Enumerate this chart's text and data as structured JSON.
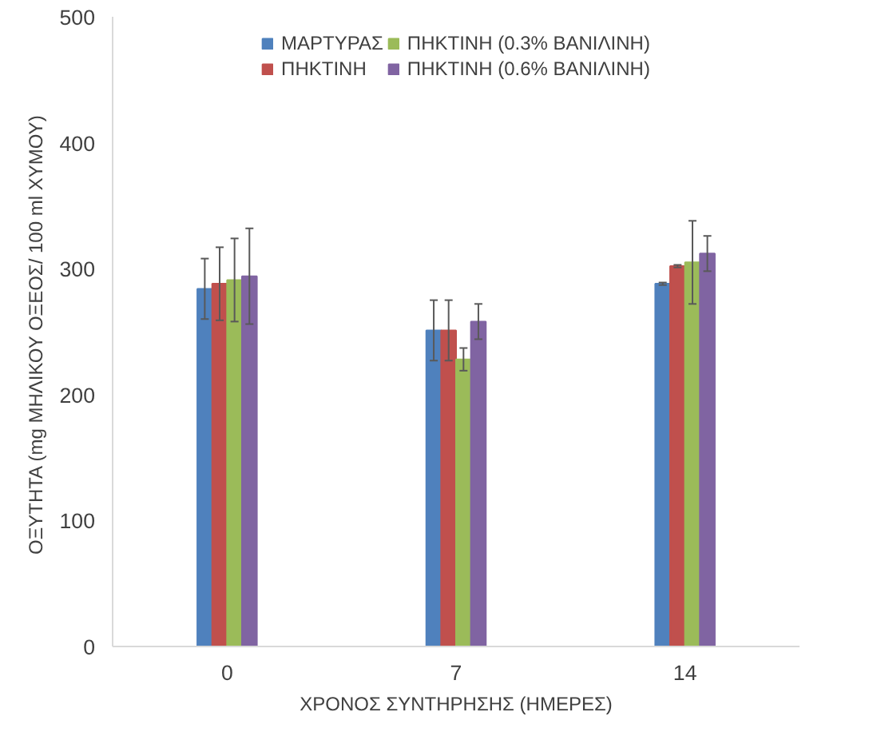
{
  "chart_data": {
    "type": "bar",
    "xlabel": "ΧΡΟΝΟΣ ΣΥΝΤΗΡΗΣΗΣ (ΗΜΕΡΕΣ)",
    "ylabel": "ΟΞΥΤΗΤΑ (mg  ΜΗΛΙΚΟΥ ΟΞΕΟΣ/ 100 ml ΧΥΜΟΥ)",
    "categories": [
      "0",
      "7",
      "14"
    ],
    "series": [
      {
        "name": "ΜΑΡΤΥΡΑΣ",
        "color": "#4f81bd",
        "values": [
          284,
          251,
          288
        ],
        "errors": [
          24,
          24,
          1
        ]
      },
      {
        "name": "ΠΗΚΤΙΝΗ",
        "color": "#c0504d",
        "values": [
          288,
          251,
          302
        ],
        "errors": [
          29,
          24,
          1
        ]
      },
      {
        "name": "ΠΗΚΤΙΝΗ (0.3% ΒΑΝΙΛΙΝΗ)",
        "color": "#9bbb59",
        "values": [
          291,
          228,
          305
        ],
        "errors": [
          33,
          9,
          33
        ]
      },
      {
        "name": "ΠΗΚΤΙΝΗ (0.6% ΒΑΝΙΛΙΝΗ)",
        "color": "#8064a2",
        "values": [
          294,
          258,
          312
        ],
        "errors": [
          38,
          14,
          14
        ]
      }
    ],
    "ylim": [
      0,
      500
    ],
    "yticks": [
      0,
      100,
      200,
      300,
      400,
      500
    ],
    "grid": false,
    "legend": "top"
  }
}
